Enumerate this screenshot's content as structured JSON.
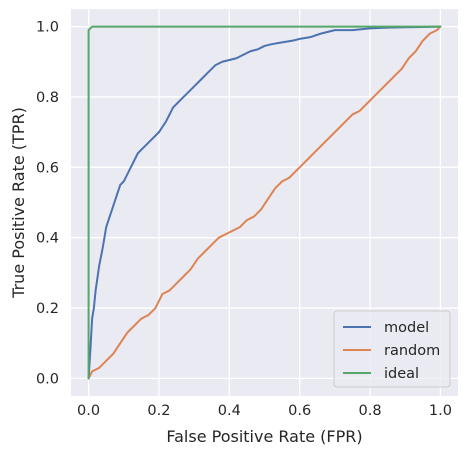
{
  "chart_data": {
    "type": "line",
    "title": "",
    "xlabel": "False Positive Rate (FPR)",
    "ylabel": "True Positive Rate (TPR)",
    "xlim": [
      -0.05,
      1.05
    ],
    "ylim": [
      -0.05,
      1.05
    ],
    "xticks": [
      "0.0",
      "0.2",
      "0.4",
      "0.6",
      "0.8",
      "1.0"
    ],
    "yticks": [
      "0.0",
      "0.2",
      "0.4",
      "0.6",
      "0.8",
      "1.0"
    ],
    "grid": true,
    "legend_position": "bottom-right",
    "colors": {
      "background": "#eaeaf2",
      "grid": "#ffffff"
    },
    "series": [
      {
        "name": "model",
        "color": "#4c72b0",
        "x": [
          0.0,
          0.005,
          0.01,
          0.015,
          0.02,
          0.03,
          0.04,
          0.05,
          0.06,
          0.07,
          0.08,
          0.09,
          0.1,
          0.12,
          0.14,
          0.16,
          0.18,
          0.2,
          0.22,
          0.24,
          0.26,
          0.28,
          0.3,
          0.32,
          0.34,
          0.36,
          0.38,
          0.4,
          0.42,
          0.44,
          0.46,
          0.48,
          0.5,
          0.52,
          0.55,
          0.58,
          0.6,
          0.63,
          0.66,
          0.7,
          0.75,
          0.8,
          0.85,
          0.9,
          0.95,
          1.0
        ],
        "y": [
          0.0,
          0.08,
          0.17,
          0.2,
          0.25,
          0.32,
          0.37,
          0.43,
          0.46,
          0.49,
          0.52,
          0.55,
          0.56,
          0.6,
          0.64,
          0.66,
          0.68,
          0.7,
          0.73,
          0.77,
          0.79,
          0.81,
          0.83,
          0.85,
          0.87,
          0.89,
          0.9,
          0.905,
          0.91,
          0.92,
          0.93,
          0.935,
          0.945,
          0.95,
          0.955,
          0.96,
          0.965,
          0.97,
          0.98,
          0.99,
          0.99,
          0.995,
          0.997,
          0.998,
          0.999,
          1.0
        ]
      },
      {
        "name": "random",
        "color": "#dd8452",
        "x": [
          0.0,
          0.01,
          0.03,
          0.05,
          0.07,
          0.09,
          0.11,
          0.13,
          0.15,
          0.17,
          0.19,
          0.21,
          0.23,
          0.25,
          0.27,
          0.29,
          0.31,
          0.33,
          0.35,
          0.37,
          0.39,
          0.41,
          0.43,
          0.45,
          0.47,
          0.49,
          0.51,
          0.53,
          0.55,
          0.57,
          0.59,
          0.61,
          0.63,
          0.65,
          0.67,
          0.69,
          0.71,
          0.73,
          0.75,
          0.77,
          0.79,
          0.81,
          0.83,
          0.85,
          0.87,
          0.89,
          0.91,
          0.93,
          0.95,
          0.97,
          0.99,
          1.0
        ],
        "y": [
          0.0,
          0.02,
          0.03,
          0.05,
          0.07,
          0.1,
          0.13,
          0.15,
          0.17,
          0.18,
          0.2,
          0.24,
          0.25,
          0.27,
          0.29,
          0.31,
          0.34,
          0.36,
          0.38,
          0.4,
          0.41,
          0.42,
          0.43,
          0.45,
          0.46,
          0.48,
          0.51,
          0.54,
          0.56,
          0.57,
          0.59,
          0.61,
          0.63,
          0.65,
          0.67,
          0.69,
          0.71,
          0.73,
          0.75,
          0.76,
          0.78,
          0.8,
          0.82,
          0.84,
          0.86,
          0.88,
          0.91,
          0.93,
          0.96,
          0.98,
          0.99,
          1.0
        ]
      },
      {
        "name": "ideal",
        "color": "#55a868",
        "x": [
          0.0,
          0.0,
          0.01,
          1.0
        ],
        "y": [
          0.0,
          0.99,
          1.0,
          1.0
        ]
      }
    ]
  }
}
